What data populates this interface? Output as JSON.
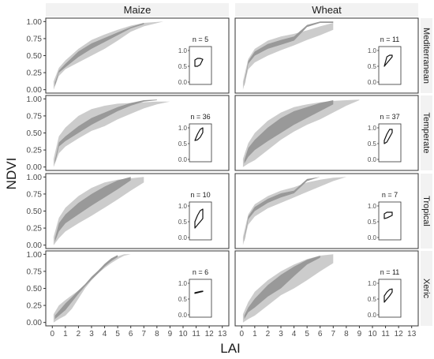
{
  "chart_data": {
    "type": "area",
    "ylabel": "NDVI",
    "xlabel": "LAI",
    "x_ticks": [
      0,
      1,
      2,
      3,
      4,
      5,
      6,
      7,
      8,
      9,
      10,
      11,
      12,
      13
    ],
    "y_ticks": [
      0.0,
      0.25,
      0.5,
      0.75,
      1.0
    ],
    "y_tick_labels": [
      "0.00",
      "0.25",
      "0.50",
      "0.75",
      "1.00"
    ],
    "xlim": [
      -0.5,
      13.5
    ],
    "ylim": [
      -0.05,
      1.05
    ],
    "inset_y_ticks": [
      0.0,
      0.5,
      1.0
    ],
    "inset_y_tick_labels": [
      "0.0",
      "0.5",
      "1.0"
    ],
    "columns": [
      "Maize",
      "Wheat"
    ],
    "rows": [
      "Mediterranean",
      "Temperate",
      "Tropical",
      "Xeric"
    ],
    "colors": {
      "outer_band": "#cccccc",
      "inner_band": "#999999",
      "panel_border": "#333333",
      "strip_bg": "#f2f2f2"
    },
    "panels": [
      {
        "crop": "Maize",
        "climate": "Mediterranean",
        "n_label": "n = 5",
        "outer": {
          "x": [
            0.1,
            0.5,
            1,
            2,
            3,
            4,
            5,
            6,
            7,
            8.5
          ],
          "lower": [
            0.0,
            0.2,
            0.3,
            0.4,
            0.5,
            0.6,
            0.72,
            0.85,
            0.93,
            1.0
          ],
          "upper": [
            0.12,
            0.32,
            0.43,
            0.6,
            0.73,
            0.81,
            0.88,
            0.94,
            0.98,
            1.0
          ]
        },
        "inner": {
          "x": [
            0.2,
            0.5,
            1,
            2,
            3,
            4,
            5,
            6,
            7
          ],
          "lower": [
            0.05,
            0.25,
            0.33,
            0.48,
            0.6,
            0.7,
            0.8,
            0.9,
            0.96
          ],
          "upper": [
            0.1,
            0.28,
            0.38,
            0.56,
            0.68,
            0.76,
            0.84,
            0.92,
            0.98
          ]
        },
        "inset": {
          "lower": [
            0.5,
            0.5,
            0.55,
            0.72
          ],
          "upper": [
            0.7,
            0.75,
            0.75,
            0.72
          ]
        }
      },
      {
        "crop": "Wheat",
        "climate": "Mediterranean",
        "n_label": "n = 11",
        "outer": {
          "x": [
            0.1,
            0.5,
            1,
            2,
            3,
            4,
            5,
            6,
            7
          ],
          "lower": [
            0.0,
            0.3,
            0.4,
            0.5,
            0.58,
            0.65,
            0.73,
            0.8,
            0.88
          ],
          "upper": [
            0.12,
            0.45,
            0.6,
            0.72,
            0.78,
            0.82,
            0.87,
            0.93,
            0.98
          ]
        },
        "inner": {
          "x": [
            0.2,
            0.5,
            1,
            2,
            3,
            4,
            5,
            6,
            7
          ],
          "lower": [
            0.05,
            0.38,
            0.5,
            0.6,
            0.66,
            0.72,
            0.92,
            0.98,
            0.98
          ],
          "upper": [
            0.1,
            0.42,
            0.56,
            0.67,
            0.73,
            0.78,
            0.95,
            1.0,
            1.0
          ]
        },
        "inset": {
          "lower": [
            0.5,
            0.6,
            0.7,
            0.8
          ],
          "upper": [
            0.5,
            0.8,
            0.85,
            0.85
          ]
        }
      },
      {
        "crop": "Maize",
        "climate": "Temperate",
        "n_label": "n = 36",
        "outer": {
          "x": [
            0.1,
            0.5,
            1,
            2,
            3,
            4,
            5,
            6,
            7,
            8,
            9
          ],
          "lower": [
            0.0,
            0.2,
            0.3,
            0.42,
            0.53,
            0.6,
            0.7,
            0.78,
            0.86,
            0.92,
            0.96
          ],
          "upper": [
            0.12,
            0.45,
            0.58,
            0.75,
            0.85,
            0.9,
            0.93,
            0.94,
            0.95,
            0.96,
            0.96
          ]
        },
        "inner": {
          "x": [
            0.2,
            0.5,
            1,
            2,
            3,
            4,
            5,
            6,
            7,
            8
          ],
          "lower": [
            0.05,
            0.3,
            0.38,
            0.5,
            0.62,
            0.72,
            0.82,
            0.9,
            0.96,
            0.98
          ],
          "upper": [
            0.1,
            0.36,
            0.45,
            0.6,
            0.72,
            0.8,
            0.88,
            0.94,
            0.98,
            0.99
          ]
        },
        "inset": {
          "lower": [
            0.6,
            0.62,
            0.7,
            0.85
          ],
          "upper": [
            0.6,
            0.8,
            0.95,
            1.0
          ]
        }
      },
      {
        "crop": "Wheat",
        "climate": "Temperate",
        "n_label": "n = 37",
        "outer": {
          "x": [
            0.1,
            0.5,
            1,
            2,
            3,
            4,
            5,
            6,
            7,
            8,
            9
          ],
          "lower": [
            0.0,
            0.05,
            0.1,
            0.25,
            0.4,
            0.52,
            0.62,
            0.7,
            0.8,
            0.9,
            0.98
          ],
          "upper": [
            0.12,
            0.35,
            0.5,
            0.68,
            0.8,
            0.88,
            0.92,
            0.95,
            0.97,
            0.98,
            0.99
          ]
        },
        "inner": {
          "x": [
            0.2,
            0.5,
            1,
            2,
            3,
            4,
            5,
            6,
            7
          ],
          "lower": [
            0.05,
            0.15,
            0.25,
            0.38,
            0.5,
            0.62,
            0.72,
            0.82,
            0.92
          ],
          "upper": [
            0.1,
            0.28,
            0.4,
            0.58,
            0.72,
            0.82,
            0.88,
            0.94,
            0.98
          ]
        },
        "inset": {
          "lower": [
            0.5,
            0.55,
            0.7,
            0.85
          ],
          "upper": [
            0.6,
            0.8,
            0.95,
            0.95
          ]
        }
      },
      {
        "crop": "Maize",
        "climate": "Tropical",
        "n_label": "n = 10",
        "outer": {
          "x": [
            0.1,
            0.5,
            1,
            2,
            3,
            4,
            5,
            6,
            7
          ],
          "lower": [
            0.0,
            0.1,
            0.2,
            0.32,
            0.43,
            0.55,
            0.67,
            0.8,
            0.92
          ],
          "upper": [
            0.12,
            0.4,
            0.55,
            0.72,
            0.84,
            0.92,
            0.96,
            0.98,
            1.0
          ]
        },
        "inner": {
          "x": [
            0.2,
            0.5,
            1,
            2,
            3,
            4,
            5,
            6
          ],
          "lower": [
            0.05,
            0.2,
            0.32,
            0.45,
            0.58,
            0.7,
            0.82,
            0.95
          ],
          "upper": [
            0.1,
            0.32,
            0.45,
            0.62,
            0.75,
            0.86,
            0.95,
            1.0
          ]
        },
        "inset": {
          "lower": [
            0.3,
            0.4,
            0.5,
            0.6
          ],
          "upper": [
            0.5,
            0.7,
            0.85,
            0.9
          ]
        }
      },
      {
        "crop": "Wheat",
        "climate": "Tropical",
        "n_label": "n = 7",
        "outer": {
          "x": [
            0.1,
            0.5,
            1,
            2,
            3,
            4,
            5,
            6,
            7,
            8
          ],
          "lower": [
            0.0,
            0.3,
            0.42,
            0.54,
            0.62,
            0.7,
            0.78,
            0.86,
            0.94,
            1.0
          ],
          "upper": [
            0.12,
            0.45,
            0.6,
            0.72,
            0.8,
            0.85,
            0.92,
            0.96,
            0.99,
            1.0
          ]
        },
        "inner": {
          "x": [
            0.2,
            0.5,
            1,
            2,
            3,
            4,
            5,
            6
          ],
          "lower": [
            0.05,
            0.38,
            0.5,
            0.62,
            0.7,
            0.76,
            0.94,
            1.0
          ],
          "upper": [
            0.1,
            0.42,
            0.56,
            0.68,
            0.76,
            0.8,
            0.97,
            1.0
          ]
        },
        "inset": {
          "lower": [
            0.6,
            0.62,
            0.66,
            0.7
          ],
          "upper": [
            0.75,
            0.8,
            0.8,
            0.8
          ]
        }
      },
      {
        "crop": "Maize",
        "climate": "Xeric",
        "n_label": "n = 6",
        "outer": {
          "x": [
            0.1,
            0.5,
            1,
            1.5,
            2,
            2.5,
            3,
            3.5,
            4,
            4.5,
            5,
            5.5,
            6
          ],
          "lower": [
            0.0,
            0.05,
            0.1,
            0.2,
            0.35,
            0.5,
            0.62,
            0.72,
            0.8,
            0.87,
            0.93,
            0.98,
            1.0
          ],
          "upper": [
            0.12,
            0.25,
            0.33,
            0.4,
            0.47,
            0.55,
            0.65,
            0.75,
            0.84,
            0.92,
            0.97,
            1.0,
            1.0
          ]
        },
        "inner": {
          "x": [
            0.2,
            1,
            1.5,
            2,
            2.5,
            3,
            3.5,
            4,
            4.5,
            5
          ],
          "lower": [
            0.05,
            0.18,
            0.3,
            0.42,
            0.53,
            0.63,
            0.72,
            0.82,
            0.9,
            0.96
          ],
          "upper": [
            0.1,
            0.28,
            0.37,
            0.47,
            0.56,
            0.67,
            0.76,
            0.86,
            0.94,
            0.99
          ]
        },
        "inset": {
          "lower": [
            0.68,
            0.7,
            0.72,
            0.74
          ],
          "upper": [
            0.7,
            0.72,
            0.74,
            0.75
          ]
        }
      },
      {
        "crop": "Wheat",
        "climate": "Xeric",
        "n_label": "n = 11",
        "outer": {
          "x": [
            0.1,
            0.5,
            1,
            2,
            3,
            4,
            5,
            6,
            7
          ],
          "lower": [
            0.0,
            0.05,
            0.1,
            0.25,
            0.4,
            0.5,
            0.62,
            0.75,
            0.87
          ],
          "upper": [
            0.12,
            0.3,
            0.45,
            0.62,
            0.75,
            0.85,
            0.93,
            0.98,
            1.0
          ]
        },
        "inner": {
          "x": [
            0.2,
            0.5,
            1,
            2,
            3,
            4,
            5,
            6
          ],
          "lower": [
            0.05,
            0.15,
            0.22,
            0.38,
            0.5,
            0.68,
            0.85,
            0.95
          ],
          "upper": [
            0.1,
            0.22,
            0.35,
            0.55,
            0.7,
            0.82,
            0.92,
            0.98
          ]
        },
        "inset": {
          "lower": [
            0.4,
            0.5,
            0.6,
            0.72
          ],
          "upper": [
            0.6,
            0.72,
            0.8,
            0.82
          ]
        }
      }
    ]
  }
}
